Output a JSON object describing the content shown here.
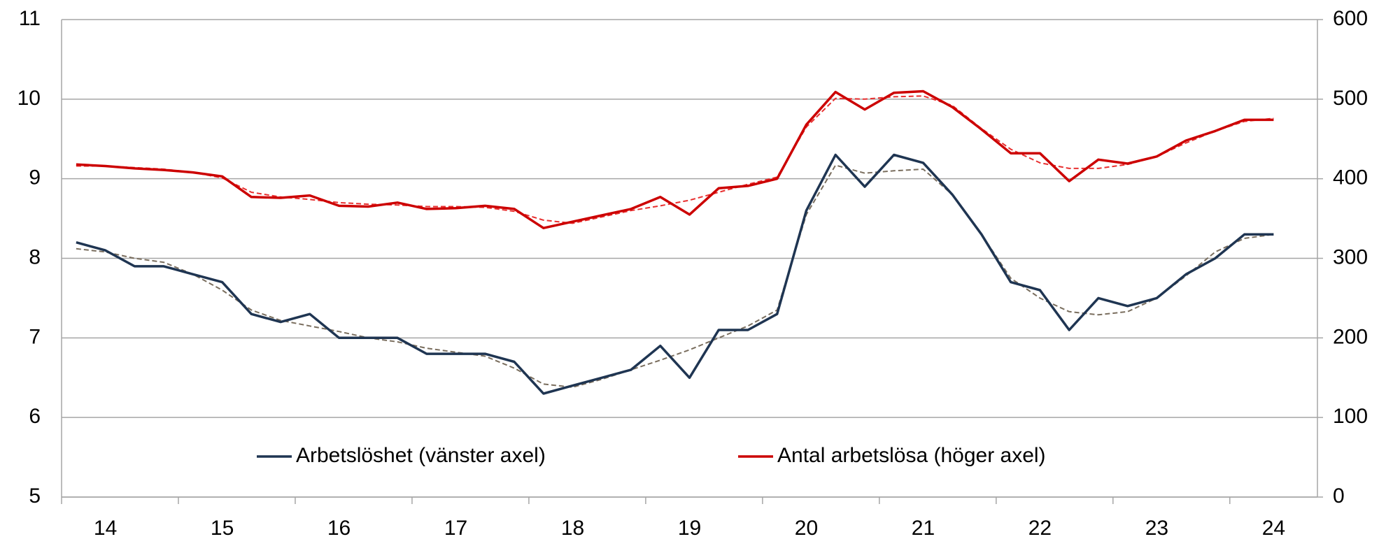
{
  "chart_data": {
    "type": "line",
    "categories": [
      null,
      "14",
      null,
      null,
      null,
      "15",
      null,
      null,
      null,
      "16",
      null,
      null,
      null,
      "17",
      null,
      null,
      null,
      "18",
      null,
      null,
      null,
      "19",
      null,
      null,
      null,
      "20",
      null,
      null,
      null,
      "21",
      null,
      null,
      null,
      "22",
      null,
      null,
      null,
      "23",
      null,
      null,
      null,
      "24"
    ],
    "series": [
      {
        "name": "Arbetslöshet (vänster axel)",
        "color": "#1f3552",
        "axis": "y",
        "values": [
          8.2,
          8.1,
          7.9,
          7.9,
          7.8,
          7.7,
          7.3,
          7.2,
          7.3,
          7.0,
          7.0,
          7.0,
          6.8,
          6.8,
          6.8,
          6.7,
          6.3,
          6.4,
          6.5,
          6.6,
          6.9,
          6.5,
          7.1,
          7.1,
          7.3,
          8.6,
          9.3,
          8.9,
          9.3,
          9.2,
          8.8,
          8.3,
          7.7,
          7.6,
          7.1,
          7.5,
          7.4,
          7.5,
          7.8,
          8.0,
          8.3,
          8.3
        ]
      },
      {
        "name": "Antal arbetslösa (höger axel)",
        "color": "#cc0000",
        "axis": "y2",
        "values": [
          418,
          416,
          413,
          411,
          408,
          403,
          377,
          376,
          379,
          366,
          365,
          370,
          362,
          363,
          366,
          362,
          338,
          346,
          354,
          362,
          377,
          355,
          388,
          391,
          400,
          468,
          509,
          487,
          508,
          510,
          490,
          462,
          432,
          432,
          397,
          424,
          419,
          428,
          448,
          460,
          474,
          474
        ]
      },
      {
        "color": "#7a6e5e",
        "axis": "y",
        "dashed": true,
        "values": [
          8.12,
          8.08,
          8.0,
          7.95,
          7.8,
          7.6,
          7.35,
          7.22,
          7.15,
          7.08,
          7.0,
          6.95,
          6.87,
          6.82,
          6.77,
          6.62,
          6.42,
          6.38,
          6.48,
          6.6,
          6.72,
          6.85,
          7.0,
          7.15,
          7.35,
          8.55,
          9.17,
          9.07,
          9.1,
          9.12,
          8.8,
          8.3,
          7.75,
          7.5,
          7.33,
          7.29,
          7.33,
          7.5,
          7.78,
          8.08,
          8.25,
          8.3
        ]
      },
      {
        "color": "#e83030",
        "axis": "y2",
        "dashed": true,
        "values": [
          416,
          416,
          414,
          412,
          408,
          401,
          383,
          377,
          374,
          370,
          368,
          367,
          365,
          365,
          364,
          359,
          348,
          344,
          352,
          360,
          366,
          373,
          383,
          393,
          402,
          465,
          501,
          500,
          503,
          504,
          492,
          463,
          437,
          420,
          413,
          413,
          418,
          428,
          445,
          460,
          472,
          476
        ]
      }
    ],
    "ylim": [
      5,
      11
    ],
    "yticks": [
      5,
      6,
      7,
      8,
      9,
      10,
      11
    ],
    "y2lim": [
      0,
      600
    ],
    "y2ticks": [
      0,
      100,
      200,
      300,
      400,
      500,
      600
    ],
    "grid": true,
    "legend": "bottom"
  }
}
